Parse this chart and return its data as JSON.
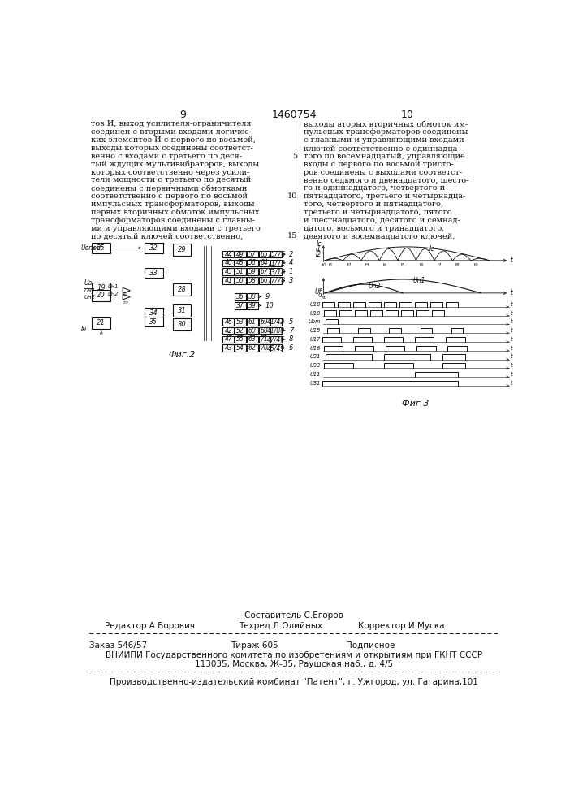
{
  "page_numbers": [
    "9",
    "10"
  ],
  "patent_number": "1460754",
  "left_column_text": [
    "тов И, выход усилителя-ограничителя",
    "соединен с вторыми входами логичес-",
    "ких элементов И с первого по восьмой,",
    "выходы которых соединены соответст-",
    "венно с входами с третьего по деся-",
    "тый ждущих мультивибраторов, выходы",
    "которых соответственно через усили-",
    "тели мощности с третьего по десятый",
    "соединены с первичными обмотками",
    "соответственно с первого по восьмой",
    "импульсных трансформаторов, выходы",
    "первых вторичных обмоток импульсных",
    "трансформаторов соединены с главны-",
    "ми и управляющими входами с третьего",
    "по десятый ключей соответственно,"
  ],
  "line_numbers_right": [
    "",
    "",
    "",
    "",
    "5",
    "",
    "",
    "",
    "",
    "10",
    "",
    "",
    "",
    "",
    "15"
  ],
  "right_column_text": [
    "выходы вторых вторичных обмоток им-",
    "пульсных трансформаторов соединены",
    "с главными и управляющими входами",
    "ключей соответственно с одиннадца-",
    "того по восемнадцатый, управляющие",
    "входы с первого по восьмой тристо-",
    "ров соединены с выходами соответст-",
    "венно седьмого и двенадцатого, шесто-",
    "го и одиннадцатого, четвертого и",
    "пятнадцатого, третьего и четырнадца-",
    "того, четвертого и пятнадцатого,",
    "третьего и четырнадцатого, пятого",
    "и шестнадцатого, десятого и семнад-",
    "цатого, восьмого и тринадцатого,",
    "девятого и восемнадцатого ключей."
  ],
  "fig2_label": "Фиг.2",
  "fig3_label": "Фиг 3",
  "footer_sestavitel": "Составитель С.Егоров",
  "footer_redaktor": "Редактор А.Ворович",
  "footer_tehred": "Техред Л.Олийных",
  "footer_korrektor": "Корректор И.Муска",
  "footer_zakaz": "Заказ 546/57",
  "footer_tirazh": "Тираж 605",
  "footer_podpisnoe": "Подписное",
  "footer_vniiphi": "ВНИИПИ Государственного комитета по изобретениям и открытиям при ГКНТ СССР",
  "footer_address": "113035, Москва, Ж-35, Раушская наб., д. 4/5",
  "footer_kombinat": "Производственно-издательский комбинат \"Патент\", г. Ужгород, ул. Гагарина,101",
  "bg_color": "#ffffff",
  "text_color": "#111111"
}
